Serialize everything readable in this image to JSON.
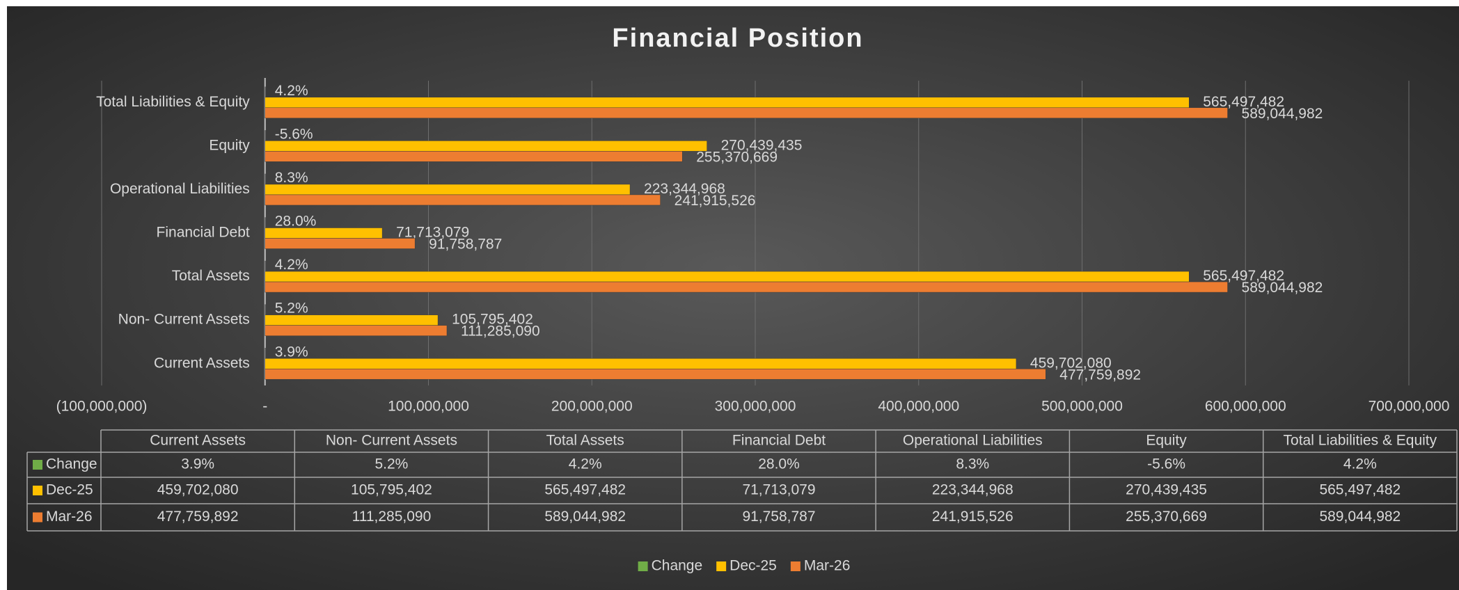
{
  "chart_data": {
    "type": "bar",
    "orientation": "horizontal",
    "title": "Financial Position",
    "categories": [
      "Current Assets",
      "Non- Current Assets",
      "Total Assets",
      "Financial Debt",
      "Operational Liabilities",
      "Equity",
      "Total Liabilities & Equity"
    ],
    "series": [
      {
        "name": "Change",
        "color": "#70ad47",
        "values": [
          0.039,
          0.052,
          0.042,
          0.28,
          0.083,
          -0.056,
          0.042
        ],
        "value_labels": [
          "3.9%",
          "5.2%",
          "4.2%",
          "28.0%",
          "8.3%",
          "-5.6%",
          "4.2%"
        ]
      },
      {
        "name": "Dec-25",
        "color": "#ffc000",
        "values": [
          459702080,
          105795402,
          565497482,
          71713079,
          223344968,
          270439435,
          565497482
        ],
        "value_labels": [
          "459,702,080",
          "105,795,402",
          "565,497,482",
          "71,713,079",
          "223,344,968",
          "270,439,435",
          "565,497,482"
        ]
      },
      {
        "name": "Mar-26",
        "color": "#ed7d31",
        "values": [
          477759892,
          111285090,
          589044982,
          91758787,
          241915526,
          255370669,
          589044982
        ],
        "value_labels": [
          "477,759,892",
          "111,285,090",
          "589,044,982",
          "91,758,787",
          "241,915,526",
          "255,370,669",
          "589,044,982"
        ]
      }
    ],
    "xlim": [
      -100000000,
      700000000
    ],
    "xticks": [
      {
        "value": -100000000,
        "label": "(100,000,000)"
      },
      {
        "value": 0,
        "label": "-"
      },
      {
        "value": 100000000,
        "label": "100,000,000"
      },
      {
        "value": 200000000,
        "label": "200,000,000"
      },
      {
        "value": 300000000,
        "label": "300,000,000"
      },
      {
        "value": 400000000,
        "label": "400,000,000"
      },
      {
        "value": 500000000,
        "label": "500,000,000"
      },
      {
        "value": 600000000,
        "label": "600,000,000"
      },
      {
        "value": 700000000,
        "label": "700,000,000"
      }
    ],
    "grid": true,
    "legend": "bottom",
    "data_table": true
  }
}
